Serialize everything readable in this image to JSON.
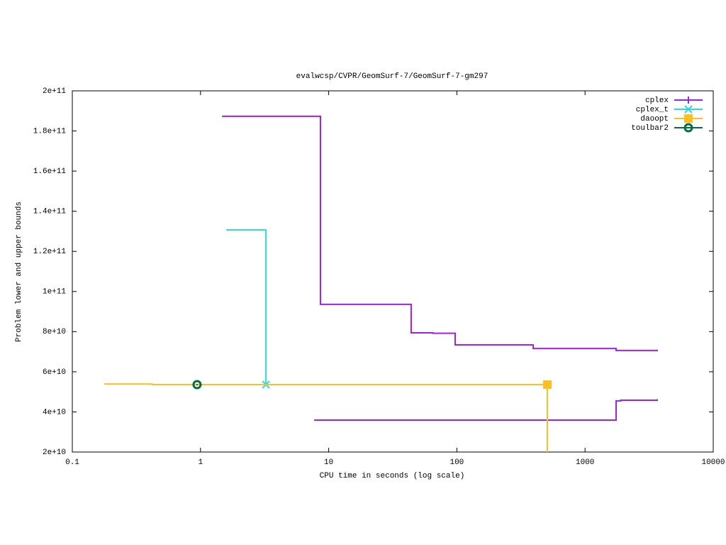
{
  "chart_data": {
    "type": "step",
    "title": "evalwcsp/CVPR/GeomSurf-7/GeomSurf-7-gm297",
    "x_label": "CPU time in seconds (log scale)",
    "y_label": "Problem lower and upper bounds",
    "x_log": true,
    "xlim": [
      0.1,
      10000
    ],
    "xticks": [
      0.1,
      1,
      10,
      100,
      1000,
      10000
    ],
    "ylim": [
      20000000000,
      200000000000
    ],
    "yticks": [
      {
        "value": 20000000000,
        "label": "2e+10"
      },
      {
        "value": 40000000000,
        "label": "4e+10"
      },
      {
        "value": 60000000000,
        "label": "6e+10"
      },
      {
        "value": 80000000000,
        "label": "8e+10"
      },
      {
        "value": 100000000000,
        "label": "1e+11"
      },
      {
        "value": 120000000000,
        "label": "1.2e+11"
      },
      {
        "value": 140000000000,
        "label": "1.4e+11"
      },
      {
        "value": 160000000000,
        "label": "1.6e+11"
      },
      {
        "value": 180000000000,
        "label": "1.8e+11"
      },
      {
        "value": 200000000000,
        "label": "2e+11"
      }
    ],
    "legend": "top-right",
    "series": [
      {
        "name": "cplex",
        "color": "#a020f0",
        "marker": "plus",
        "mark_last": false,
        "x": [
          1.49,
          8.63,
          44,
          65,
          97,
          394,
          1747,
          3655
        ],
        "values": [
          187300000000,
          93600000000,
          79400000000,
          79200000000,
          73400000000,
          71600000000,
          70600000000,
          70600000000
        ],
        "lower": {
          "x": [
            7.8,
            1747,
            1900,
            3655
          ],
          "values": [
            35900000000,
            45500000000,
            45800000000,
            46000000000
          ]
        }
      },
      {
        "name": "cplex_t",
        "color": "#30d8e0",
        "marker": "cross",
        "mark_last": true,
        "x": [
          1.61,
          3.24
        ],
        "values": [
          130700000000,
          53600000000
        ]
      },
      {
        "name": "daoopt",
        "color": "#ffbf20",
        "marker": "square",
        "mark_last": true,
        "x": [
          0.18,
          0.42,
          508
        ],
        "values": [
          53900000000,
          53600000000,
          53600000000
        ],
        "lower": {
          "x": [
            508,
            508
          ],
          "values": [
            53600000000,
            0
          ]
        }
      },
      {
        "name": "toulbar2",
        "color": "#007040",
        "marker": "circle",
        "mark_last": true,
        "x": [
          0.94
        ],
        "values": [
          53600000000
        ]
      }
    ]
  }
}
